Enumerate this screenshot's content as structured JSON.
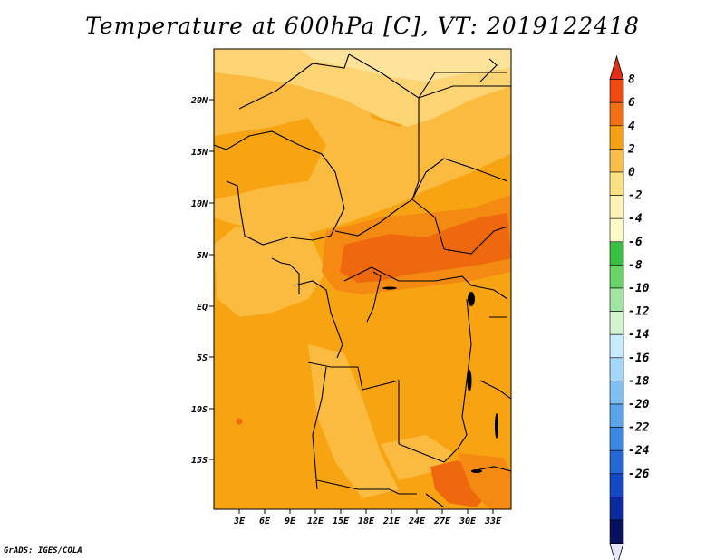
{
  "title": "Temperature at 600hPa [C], VT: 2019122418",
  "credit": "GrADS: IGES/COLA",
  "axes": {
    "lat_labels": [
      "20N",
      "15N",
      "10N",
      "5N",
      "EQ",
      "5S",
      "10S",
      "15S"
    ],
    "lon_labels": [
      "3E",
      "6E",
      "9E",
      "12E",
      "15E",
      "18E",
      "21E",
      "24E",
      "27E",
      "30E",
      "33E"
    ]
  },
  "colorbar": {
    "labels": [
      "8",
      "6",
      "4",
      "2",
      "0",
      "-2",
      "-4",
      "-6",
      "-8",
      "-10",
      "-12",
      "-14",
      "-16",
      "-18",
      "-20",
      "-22",
      "-24",
      "-26"
    ],
    "colors": [
      "#e03018",
      "#f04a10",
      "#f46e14",
      "#f8a014",
      "#fcbe48",
      "#fde080",
      "#fff4b4",
      "#fffac8",
      "#38c040",
      "#68d468",
      "#a0e6a0",
      "#d4f4d0",
      "#c8ecff",
      "#a4d8fa",
      "#80c0f4",
      "#5aa4ec",
      "#3a88e4",
      "#2468d8",
      "#1448c4",
      "#0c2aa0",
      "#081060",
      "#e4e4ff"
    ]
  },
  "field_colors": {
    "base": "#f8a412",
    "cooler": "#fbba40",
    "cool": "#fdd474",
    "coolest": "#fee39a",
    "warm": "#f48a12",
    "warmer": "#f0680e"
  }
}
